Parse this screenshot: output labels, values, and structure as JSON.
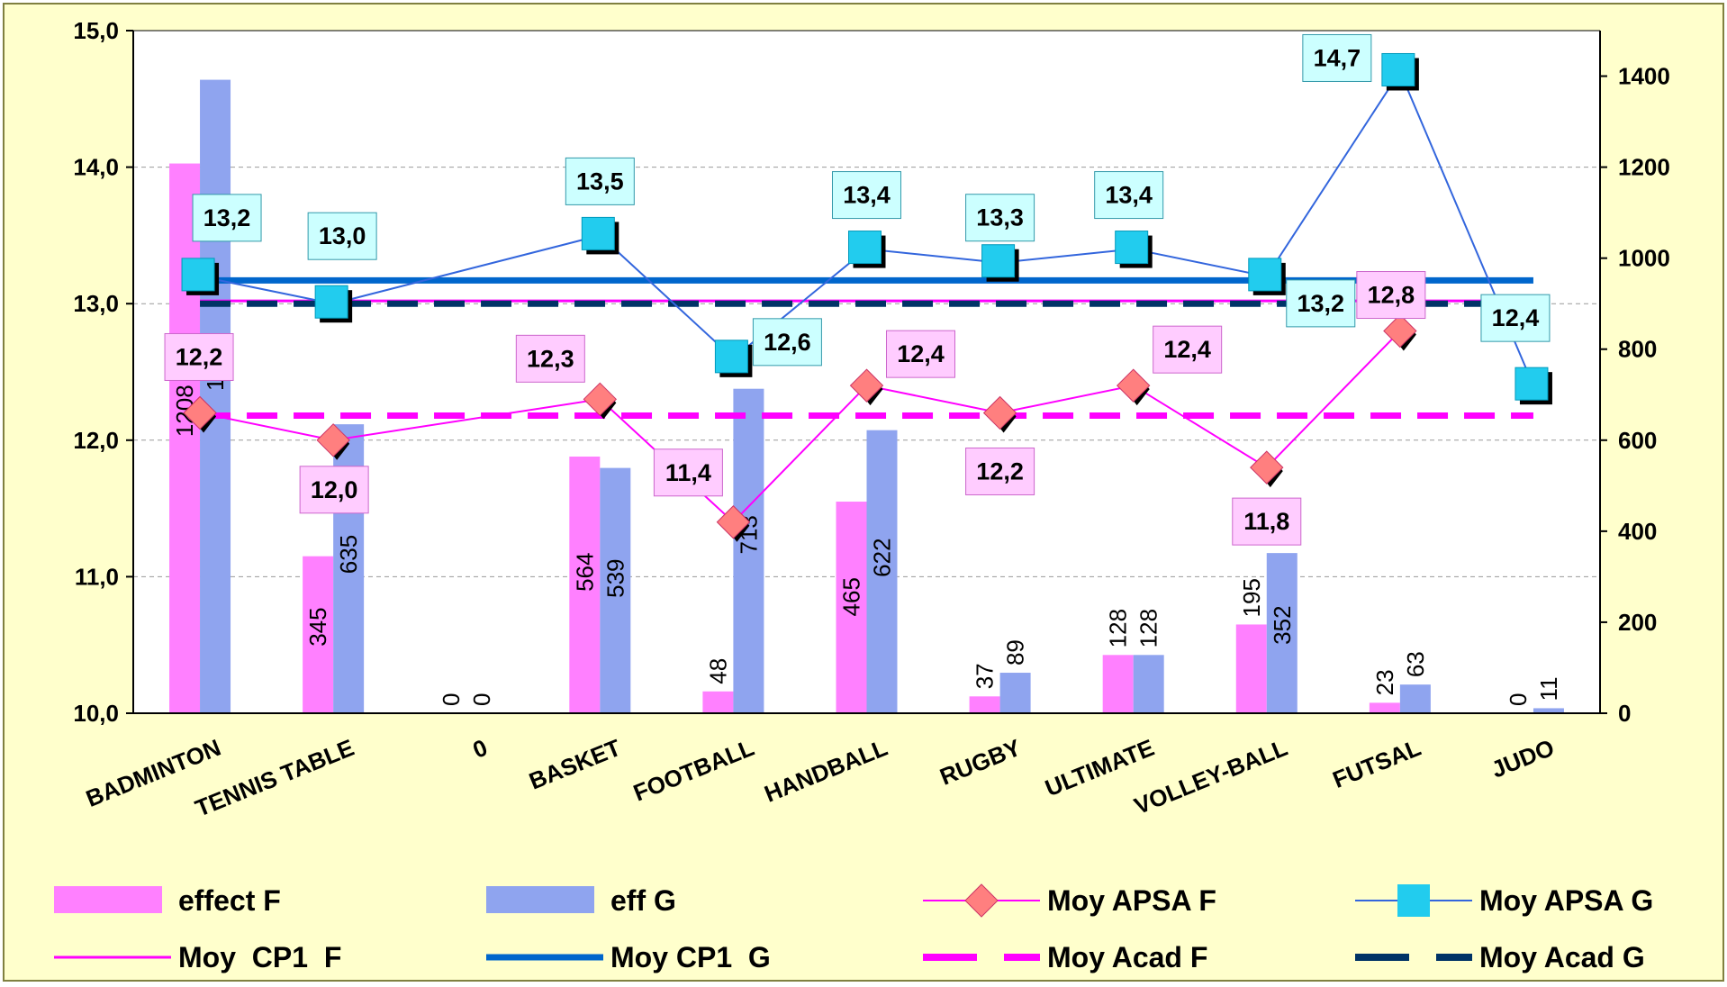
{
  "chart_data": {
    "type": "bar",
    "categories": [
      "BADMINTON",
      "TENNIS TABLE",
      "0",
      "BASKET",
      "FOOTBALL",
      "HANDBALL",
      "RUGBY",
      "ULTIMATE",
      "VOLLEY-BALL",
      "FUTSAL",
      "JUDO"
    ],
    "y_left": {
      "range": [
        10,
        15
      ],
      "ticks": [
        "10,0",
        "11,0",
        "12,0",
        "13,0",
        "14,0",
        "15,0"
      ]
    },
    "y_right": {
      "range": [
        0,
        1500
      ],
      "ticks": [
        "0",
        "200",
        "400",
        "600",
        "800",
        "1000",
        "1200",
        "1400"
      ]
    },
    "grid": true,
    "legend_position": "bottom",
    "bar_series": [
      {
        "name": "effect F",
        "axis": "right",
        "color": "#ff80ff",
        "values": [
          1208,
          345,
          0,
          564,
          48,
          465,
          37,
          128,
          195,
          23,
          0
        ],
        "labels": [
          "1208",
          "345",
          "0",
          "564",
          "48",
          "465",
          "37",
          "128",
          "195",
          "23",
          "0"
        ]
      },
      {
        "name": "eff G",
        "axis": "right",
        "color": "#8fa4ef",
        "values": [
          1392,
          635,
          0,
          539,
          713,
          622,
          89,
          128,
          352,
          63,
          11
        ],
        "labels": [
          "1392",
          "635",
          "0",
          "539",
          "713",
          "622",
          "89",
          "128",
          "352",
          "63",
          "11"
        ]
      }
    ],
    "line_series": [
      {
        "name": "Moy APSA F",
        "axis": "left",
        "color": "#ff00ff",
        "marker": "diamond",
        "marker_color": "#ff7f7f",
        "values": [
          12.2,
          12.0,
          null,
          12.3,
          11.4,
          12.4,
          12.2,
          12.4,
          11.8,
          12.8,
          null
        ],
        "labels": [
          "12,2",
          "12,0",
          "",
          "12,3",
          "11,4",
          "12,4",
          "12,2",
          "12,4",
          "11,8",
          "12,8",
          ""
        ]
      },
      {
        "name": "Moy APSA G",
        "axis": "left",
        "color": "#3366dd",
        "marker": "square",
        "marker_color": "#22ccee",
        "values": [
          13.2,
          13.0,
          null,
          13.5,
          12.6,
          13.4,
          13.3,
          13.4,
          13.2,
          14.7,
          12.4
        ],
        "labels": [
          "13,2",
          "13,0",
          "",
          "13,5",
          "12,6",
          "13,4",
          "13,3",
          "13,4",
          "13,2",
          "14,7",
          "12,4"
        ]
      }
    ],
    "reference_lines": [
      {
        "name": "Moy  CP1  F",
        "value": 13.02,
        "color": "#ff00ff",
        "style": "solid-thin"
      },
      {
        "name": "Moy CP1  G",
        "value": 13.17,
        "color": "#0066cc",
        "style": "solid-thick"
      },
      {
        "name": "Moy Acad F",
        "value": 12.18,
        "color": "#ff00ff",
        "style": "dashed"
      },
      {
        "name": "Moy Acad G",
        "value": 13.0,
        "color": "#003366",
        "style": "dashed"
      }
    ],
    "legend": [
      {
        "name": "effect F",
        "kind": "bar",
        "color": "#ff80ff"
      },
      {
        "name": "eff G",
        "kind": "bar",
        "color": "#8fa4ef"
      },
      {
        "name": "Moy APSA F",
        "kind": "line-diamond",
        "color": "#ff00ff",
        "marker_color": "#ff7f7f"
      },
      {
        "name": "Moy APSA G",
        "kind": "line-square",
        "color": "#3366dd",
        "marker_color": "#22ccee"
      },
      {
        "name": "Moy  CP1  F",
        "kind": "line-thin",
        "color": "#ff00ff"
      },
      {
        "name": "Moy CP1  G",
        "kind": "line-thick",
        "color": "#0066cc"
      },
      {
        "name": "Moy Acad F",
        "kind": "line-dashed",
        "color": "#ff00ff"
      },
      {
        "name": "Moy Acad G",
        "kind": "line-dashed",
        "color": "#003366"
      }
    ]
  }
}
